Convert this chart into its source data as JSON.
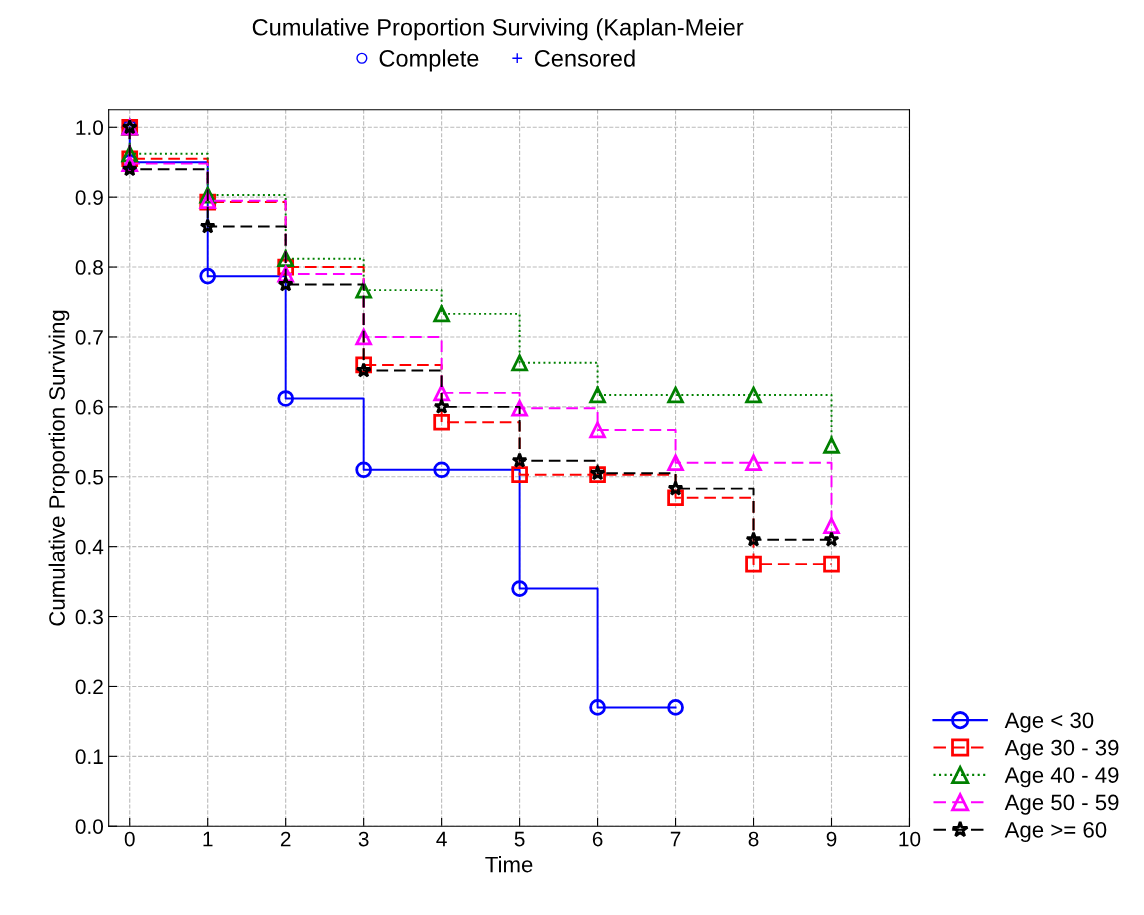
{
  "chart_data": {
    "type": "step",
    "title": "Cumulative Proportion Surviving (Kaplan-Meier",
    "xlabel": "Time",
    "ylabel": "Cumulative Proportion Surviving",
    "annotations": [
      "Complete",
      "Censored"
    ],
    "xlim": [
      -0.27,
      10
    ],
    "xticks": [
      0,
      1,
      2,
      3,
      4,
      5,
      6,
      7,
      8,
      9,
      10
    ],
    "ylim": [
      0,
      1.025
    ],
    "yticks": [
      {
        "value": 0,
        "label": "0.0"
      },
      0.1,
      0.2,
      0.3,
      0.4,
      0.5,
      0.6,
      0.7,
      0.8,
      0.9,
      {
        "value": 1,
        "label": "1.0"
      }
    ],
    "grid": true,
    "legend": "bottom right",
    "series": [
      {
        "name": "Age < 30",
        "color": "#0000ff",
        "marker": "circle",
        "line_style": "solid",
        "x": [
          0,
          0,
          1,
          2,
          3,
          4,
          5,
          6,
          7
        ],
        "values": [
          1.0,
          0.95,
          0.787,
          0.612,
          0.51,
          0.51,
          0.34,
          0.17,
          0.17
        ]
      },
      {
        "name": "Age 30 - 39",
        "color": "#ff0000",
        "marker": "square",
        "line_style": "dashed",
        "x": [
          0,
          0,
          1,
          2,
          3,
          4,
          5,
          6,
          7,
          8,
          9
        ],
        "values": [
          1.0,
          0.955,
          0.893,
          0.8,
          0.66,
          0.578,
          0.503,
          0.503,
          0.47,
          0.375,
          0.375
        ]
      },
      {
        "name": "Age 40 - 49",
        "color": "#008000",
        "marker": "triangle",
        "line_style": "dotted",
        "x": [
          0,
          0,
          1,
          2,
          3,
          4,
          5,
          6,
          7,
          8,
          9
        ],
        "values": [
          1.0,
          0.962,
          0.903,
          0.812,
          0.767,
          0.733,
          0.663,
          0.617,
          0.617,
          0.617,
          0.545
        ]
      },
      {
        "name": "Age 50 - 59",
        "color": "#ff00ff",
        "marker": "triangle",
        "line_style": "dashed",
        "x": [
          0,
          0,
          1,
          2,
          3,
          4,
          5,
          6,
          7,
          8,
          9
        ],
        "values": [
          1.0,
          0.948,
          0.895,
          0.79,
          0.7,
          0.62,
          0.598,
          0.567,
          0.52,
          0.52,
          0.43
        ]
      },
      {
        "name": "Age >= 60",
        "color": "#000000",
        "marker": "star",
        "line_style": "dashed",
        "x": [
          0,
          0,
          1,
          2,
          3,
          4,
          5,
          6,
          7,
          8,
          9
        ],
        "values": [
          1.0,
          0.94,
          0.858,
          0.775,
          0.652,
          0.6,
          0.523,
          0.505,
          0.483,
          0.41,
          0.41
        ]
      }
    ]
  }
}
